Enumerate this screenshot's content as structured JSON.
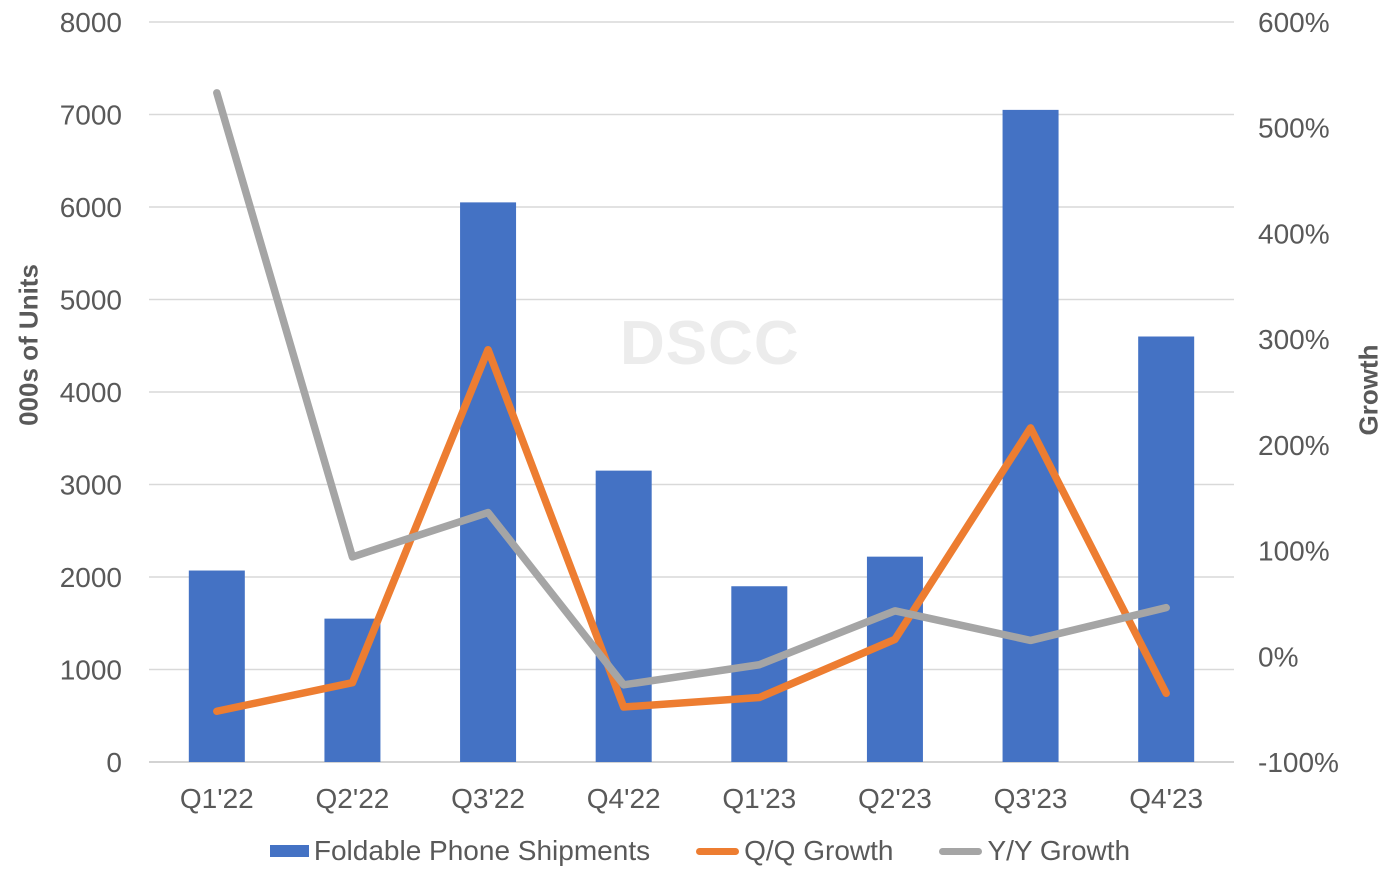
{
  "chart_data": {
    "type": "bar",
    "subtype": "combo-bar-line-dual-axis",
    "categories": [
      "Q1'22",
      "Q2'22",
      "Q3'22",
      "Q4'22",
      "Q1'23",
      "Q2'23",
      "Q3'23",
      "Q4'23"
    ],
    "series": [
      {
        "name": "Foldable Phone Shipments",
        "type": "bar",
        "axis": "left",
        "color": "#4472C4",
        "values": [
          2070,
          1550,
          6050,
          3150,
          1900,
          2220,
          7050,
          4600
        ]
      },
      {
        "name": "Q/Q Growth",
        "type": "line",
        "axis": "right",
        "color": "#ED7D31",
        "values": [
          -52,
          -25,
          290,
          -48,
          -39,
          16,
          216,
          -35
        ]
      },
      {
        "name": "Y/Y Growth",
        "type": "line",
        "axis": "right",
        "color": "#A5A5A5",
        "values": [
          533,
          94,
          136,
          -27,
          -8,
          43,
          15,
          46
        ]
      }
    ],
    "left_axis": {
      "title": "000s of Units",
      "min": 0,
      "max": 8000,
      "step": 1000,
      "suffix": ""
    },
    "right_axis": {
      "title": "Growth",
      "min": -100,
      "max": 600,
      "step": 100,
      "suffix": "%"
    },
    "watermark": "DSCC",
    "grid": true,
    "legend_position": "bottom"
  },
  "colors": {
    "tick_text": "#595959",
    "gridline": "#D9D9D9",
    "axis_line": "#D3D3D3",
    "watermark": "#ECECEC"
  }
}
